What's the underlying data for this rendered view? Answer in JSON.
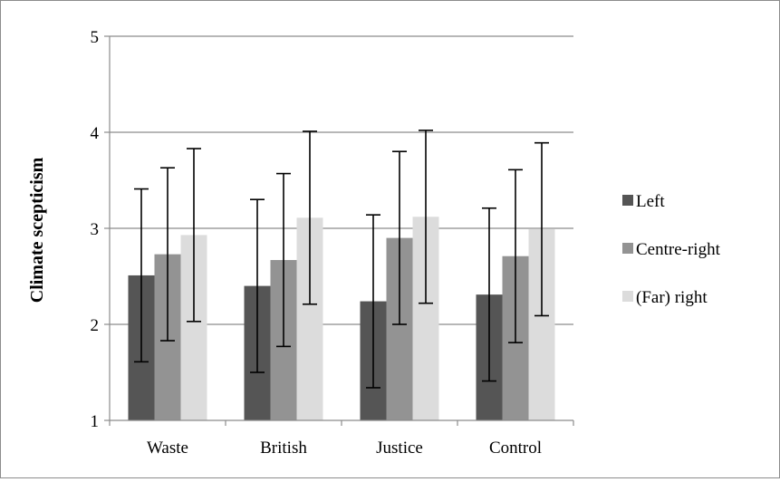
{
  "chart_data": {
    "type": "bar",
    "title": "",
    "xlabel": "",
    "ylabel": "Climate scepticism",
    "ylim": [
      1,
      5
    ],
    "yticks": [
      1,
      2,
      3,
      4,
      5
    ],
    "categories": [
      "Waste",
      "British",
      "Justice",
      "Control"
    ],
    "series": [
      {
        "name": "Left",
        "color": "#555555",
        "values": [
          2.51,
          2.4,
          2.24,
          2.31
        ],
        "error": [
          0.9,
          0.9,
          0.9,
          0.9
        ]
      },
      {
        "name": "Centre-right",
        "color": "#939393",
        "values": [
          2.73,
          2.67,
          2.9,
          2.71
        ],
        "error": [
          0.9,
          0.9,
          0.9,
          0.9
        ]
      },
      {
        "name": "(Far) right",
        "color": "#dcdcdc",
        "values": [
          2.93,
          3.11,
          3.12,
          2.99
        ],
        "error": [
          0.9,
          0.9,
          0.9,
          0.9
        ]
      }
    ],
    "grid": true,
    "legend_position": "right"
  }
}
